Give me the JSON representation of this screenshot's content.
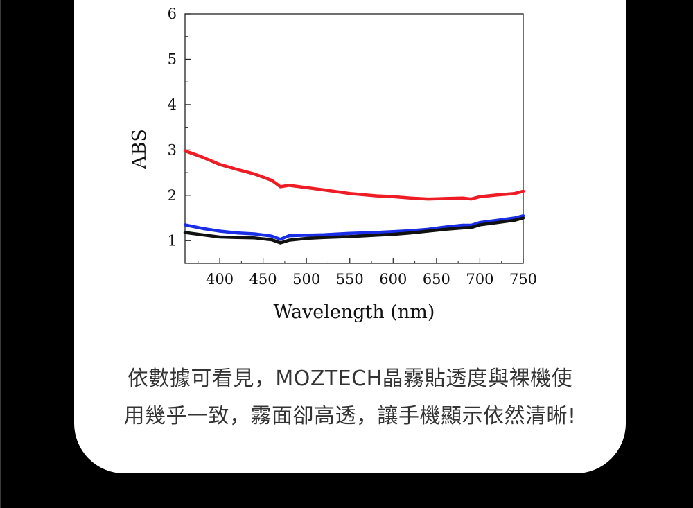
{
  "chart_data": {
    "type": "line",
    "title": "",
    "xlabel": "Wavelength (nm)",
    "ylabel": "ABS",
    "xlim": [
      360,
      750
    ],
    "ylim": [
      0.5,
      6
    ],
    "xticks": [
      400,
      450,
      500,
      550,
      600,
      650,
      700,
      750
    ],
    "yticks": [
      1,
      2,
      3,
      4,
      5,
      6
    ],
    "grid": false,
    "legend": "none",
    "series": [
      {
        "color": "#ee1c25",
        "x": [
          360,
          380,
          400,
          420,
          440,
          460,
          470,
          480,
          500,
          520,
          550,
          580,
          600,
          620,
          640,
          660,
          680,
          690,
          700,
          720,
          740,
          750
        ],
        "y": [
          2.98,
          2.84,
          2.68,
          2.57,
          2.47,
          2.33,
          2.19,
          2.22,
          2.17,
          2.12,
          2.04,
          1.99,
          1.97,
          1.94,
          1.92,
          1.93,
          1.94,
          1.92,
          1.97,
          2.01,
          2.04,
          2.09
        ]
      },
      {
        "color": "#1a2ee8",
        "x": [
          360,
          380,
          400,
          420,
          440,
          460,
          470,
          480,
          500,
          520,
          550,
          580,
          600,
          620,
          640,
          660,
          680,
          690,
          700,
          720,
          740,
          750
        ],
        "y": [
          1.35,
          1.27,
          1.21,
          1.17,
          1.15,
          1.1,
          1.03,
          1.11,
          1.12,
          1.13,
          1.16,
          1.18,
          1.2,
          1.22,
          1.25,
          1.3,
          1.34,
          1.34,
          1.4,
          1.45,
          1.5,
          1.55
        ]
      },
      {
        "color": "#111111",
        "x": [
          360,
          380,
          400,
          420,
          440,
          460,
          470,
          480,
          500,
          520,
          550,
          580,
          600,
          620,
          640,
          660,
          680,
          690,
          700,
          720,
          740,
          750
        ],
        "y": [
          1.18,
          1.13,
          1.08,
          1.07,
          1.06,
          1.02,
          0.95,
          1.01,
          1.05,
          1.07,
          1.09,
          1.12,
          1.14,
          1.17,
          1.21,
          1.25,
          1.28,
          1.29,
          1.35,
          1.4,
          1.45,
          1.5
        ]
      }
    ]
  },
  "caption": {
    "line1": "依數據可看見，MOZTECH晶霧貼透度與裸機使",
    "line2": "用幾乎一致，霧面卻高透，讓手機顯示依然清晰!"
  }
}
